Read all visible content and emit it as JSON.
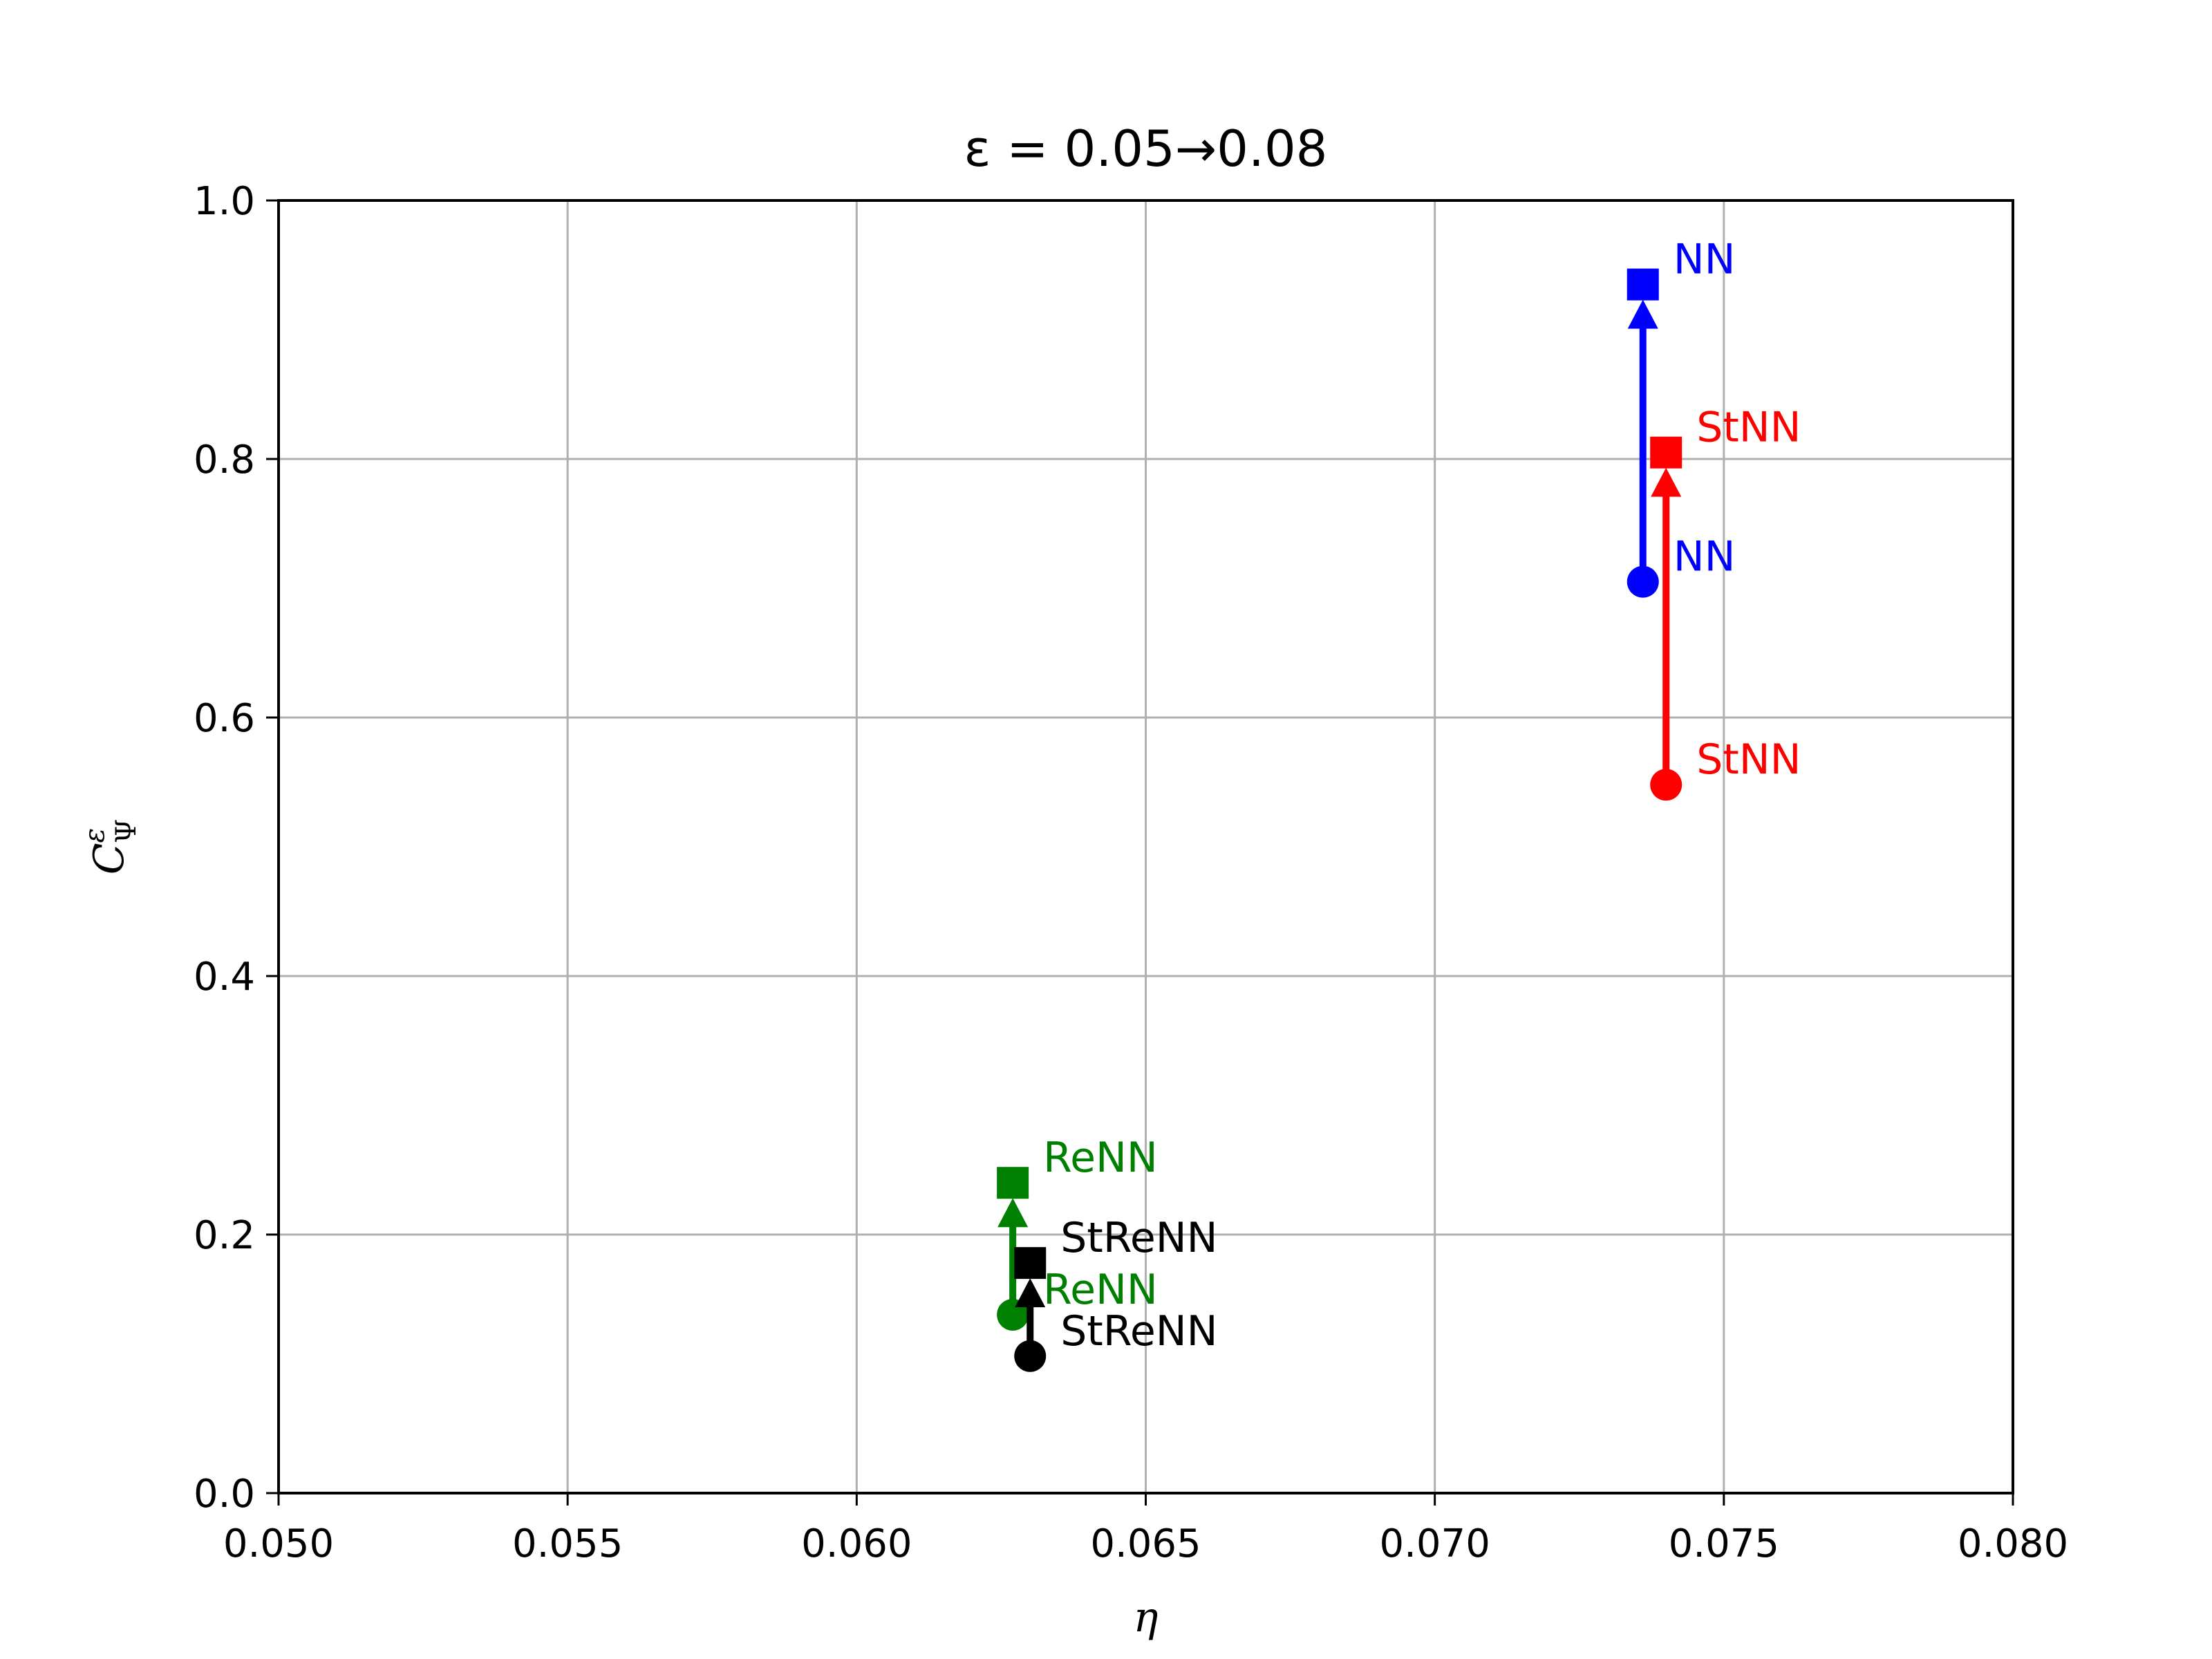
{
  "chart_data": {
    "type": "scatter",
    "title": "ε = 0.05→0.08",
    "xlabel": "η",
    "ylabel": {
      "base": "C",
      "sub": "Ψ",
      "sup": "ε"
    },
    "xlim": [
      0.05,
      0.08
    ],
    "ylim": [
      0.0,
      1.0
    ],
    "xticks": [
      "0.050",
      "0.055",
      "0.060",
      "0.065",
      "0.070",
      "0.075",
      "0.080"
    ],
    "yticks": [
      "0.0",
      "0.2",
      "0.4",
      "0.6",
      "0.8",
      "1.0"
    ],
    "grid": true,
    "legend": "none",
    "series": [
      {
        "name": "NN",
        "color": "#0000ff",
        "start": {
          "x": 0.0736,
          "y": 0.705
        },
        "end": {
          "x": 0.0736,
          "y": 0.935
        }
      },
      {
        "name": "StNN",
        "color": "#ff0000",
        "start": {
          "x": 0.074,
          "y": 0.548
        },
        "end": {
          "x": 0.074,
          "y": 0.805
        }
      },
      {
        "name": "ReNN",
        "color": "#008000",
        "start": {
          "x": 0.0627,
          "y": 0.138
        },
        "end": {
          "x": 0.0627,
          "y": 0.24
        }
      },
      {
        "name": "StReNN",
        "color": "#000000",
        "start": {
          "x": 0.063,
          "y": 0.106
        },
        "end": {
          "x": 0.063,
          "y": 0.178
        }
      }
    ]
  }
}
